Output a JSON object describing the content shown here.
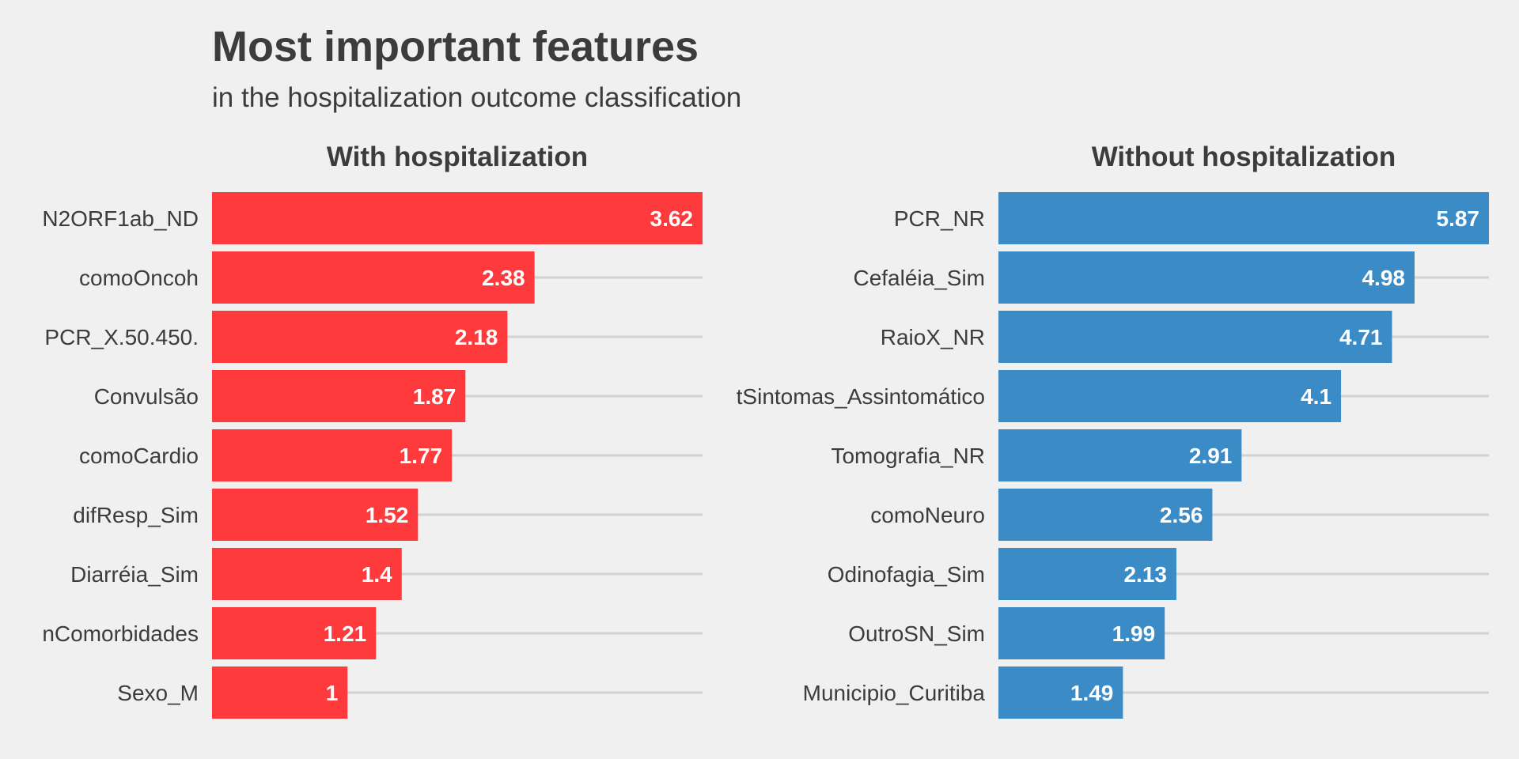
{
  "title": "Most important features",
  "subtitle": "in the hospitalization outcome classification",
  "chart_data": [
    {
      "type": "bar",
      "orientation": "horizontal",
      "title": "With hospitalization",
      "color": "#ff3a3d",
      "categories": [
        "N2ORF1ab_ND",
        "comoOncoh",
        "PCR_X.50.450.",
        "Convulsão",
        "comoCardio",
        "difResp_Sim",
        "Diarréia_Sim",
        "nComorbidades",
        "Sexo_M"
      ],
      "values": [
        3.62,
        2.38,
        2.18,
        1.87,
        1.77,
        1.52,
        1.4,
        1.21,
        1
      ],
      "value_labels": [
        "3.62",
        "2.38",
        "2.18",
        "1.87",
        "1.77",
        "1.52",
        "1.4",
        "1.21",
        "1"
      ],
      "xlim": [
        0,
        3.62
      ],
      "grid": true,
      "xlabel": "",
      "ylabel": ""
    },
    {
      "type": "bar",
      "orientation": "horizontal",
      "title": "Without hospitalization",
      "color": "#3a8bc6",
      "categories": [
        "PCR_NR",
        "Cefaléia_Sim",
        "RaioX_NR",
        "tSintomas_Assintomático",
        "Tomografia_NR",
        "comoNeuro",
        "Odinofagia_Sim",
        "OutroSN_Sim",
        "Municipio_Curitiba"
      ],
      "values": [
        5.87,
        4.98,
        4.71,
        4.1,
        2.91,
        2.56,
        2.13,
        1.99,
        1.49
      ],
      "value_labels": [
        "5.87",
        "4.98",
        "4.71",
        "4.1",
        "2.91",
        "2.56",
        "2.13",
        "1.99",
        "1.49"
      ],
      "xlim": [
        0,
        5.87
      ],
      "grid": true,
      "xlabel": "",
      "ylabel": ""
    }
  ]
}
